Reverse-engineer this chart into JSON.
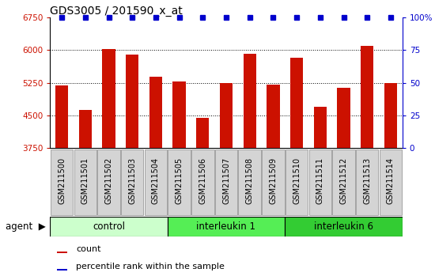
{
  "title": "GDS3005 / 201590_x_at",
  "samples": [
    "GSM211500",
    "GSM211501",
    "GSM211502",
    "GSM211503",
    "GSM211504",
    "GSM211505",
    "GSM211506",
    "GSM211507",
    "GSM211508",
    "GSM211509",
    "GSM211510",
    "GSM211511",
    "GSM211512",
    "GSM211513",
    "GSM211514"
  ],
  "counts": [
    5180,
    4630,
    6020,
    5900,
    5380,
    5280,
    4450,
    5240,
    5920,
    5200,
    5830,
    4700,
    5130,
    6100,
    5240
  ],
  "groups": [
    {
      "label": "control",
      "start": 0,
      "end": 4,
      "color": "#ccffcc"
    },
    {
      "label": "interleukin 1",
      "start": 5,
      "end": 9,
      "color": "#55ee55"
    },
    {
      "label": "interleukin 6",
      "start": 10,
      "end": 14,
      "color": "#33cc33"
    }
  ],
  "ylim_left": [
    3750,
    6750
  ],
  "ylim_right": [
    0,
    100
  ],
  "yticks_left": [
    3750,
    4500,
    5250,
    6000,
    6750
  ],
  "yticks_right": [
    0,
    25,
    50,
    75,
    100
  ],
  "bar_color": "#cc1100",
  "dot_color": "#0000cc",
  "bg_color": "#ffffff",
  "gray_box": "#d4d4d4",
  "title_fontsize": 10,
  "tick_fontsize": 7.5,
  "sample_fontsize": 7,
  "label_fontsize": 8.5,
  "legend_fontsize": 8
}
